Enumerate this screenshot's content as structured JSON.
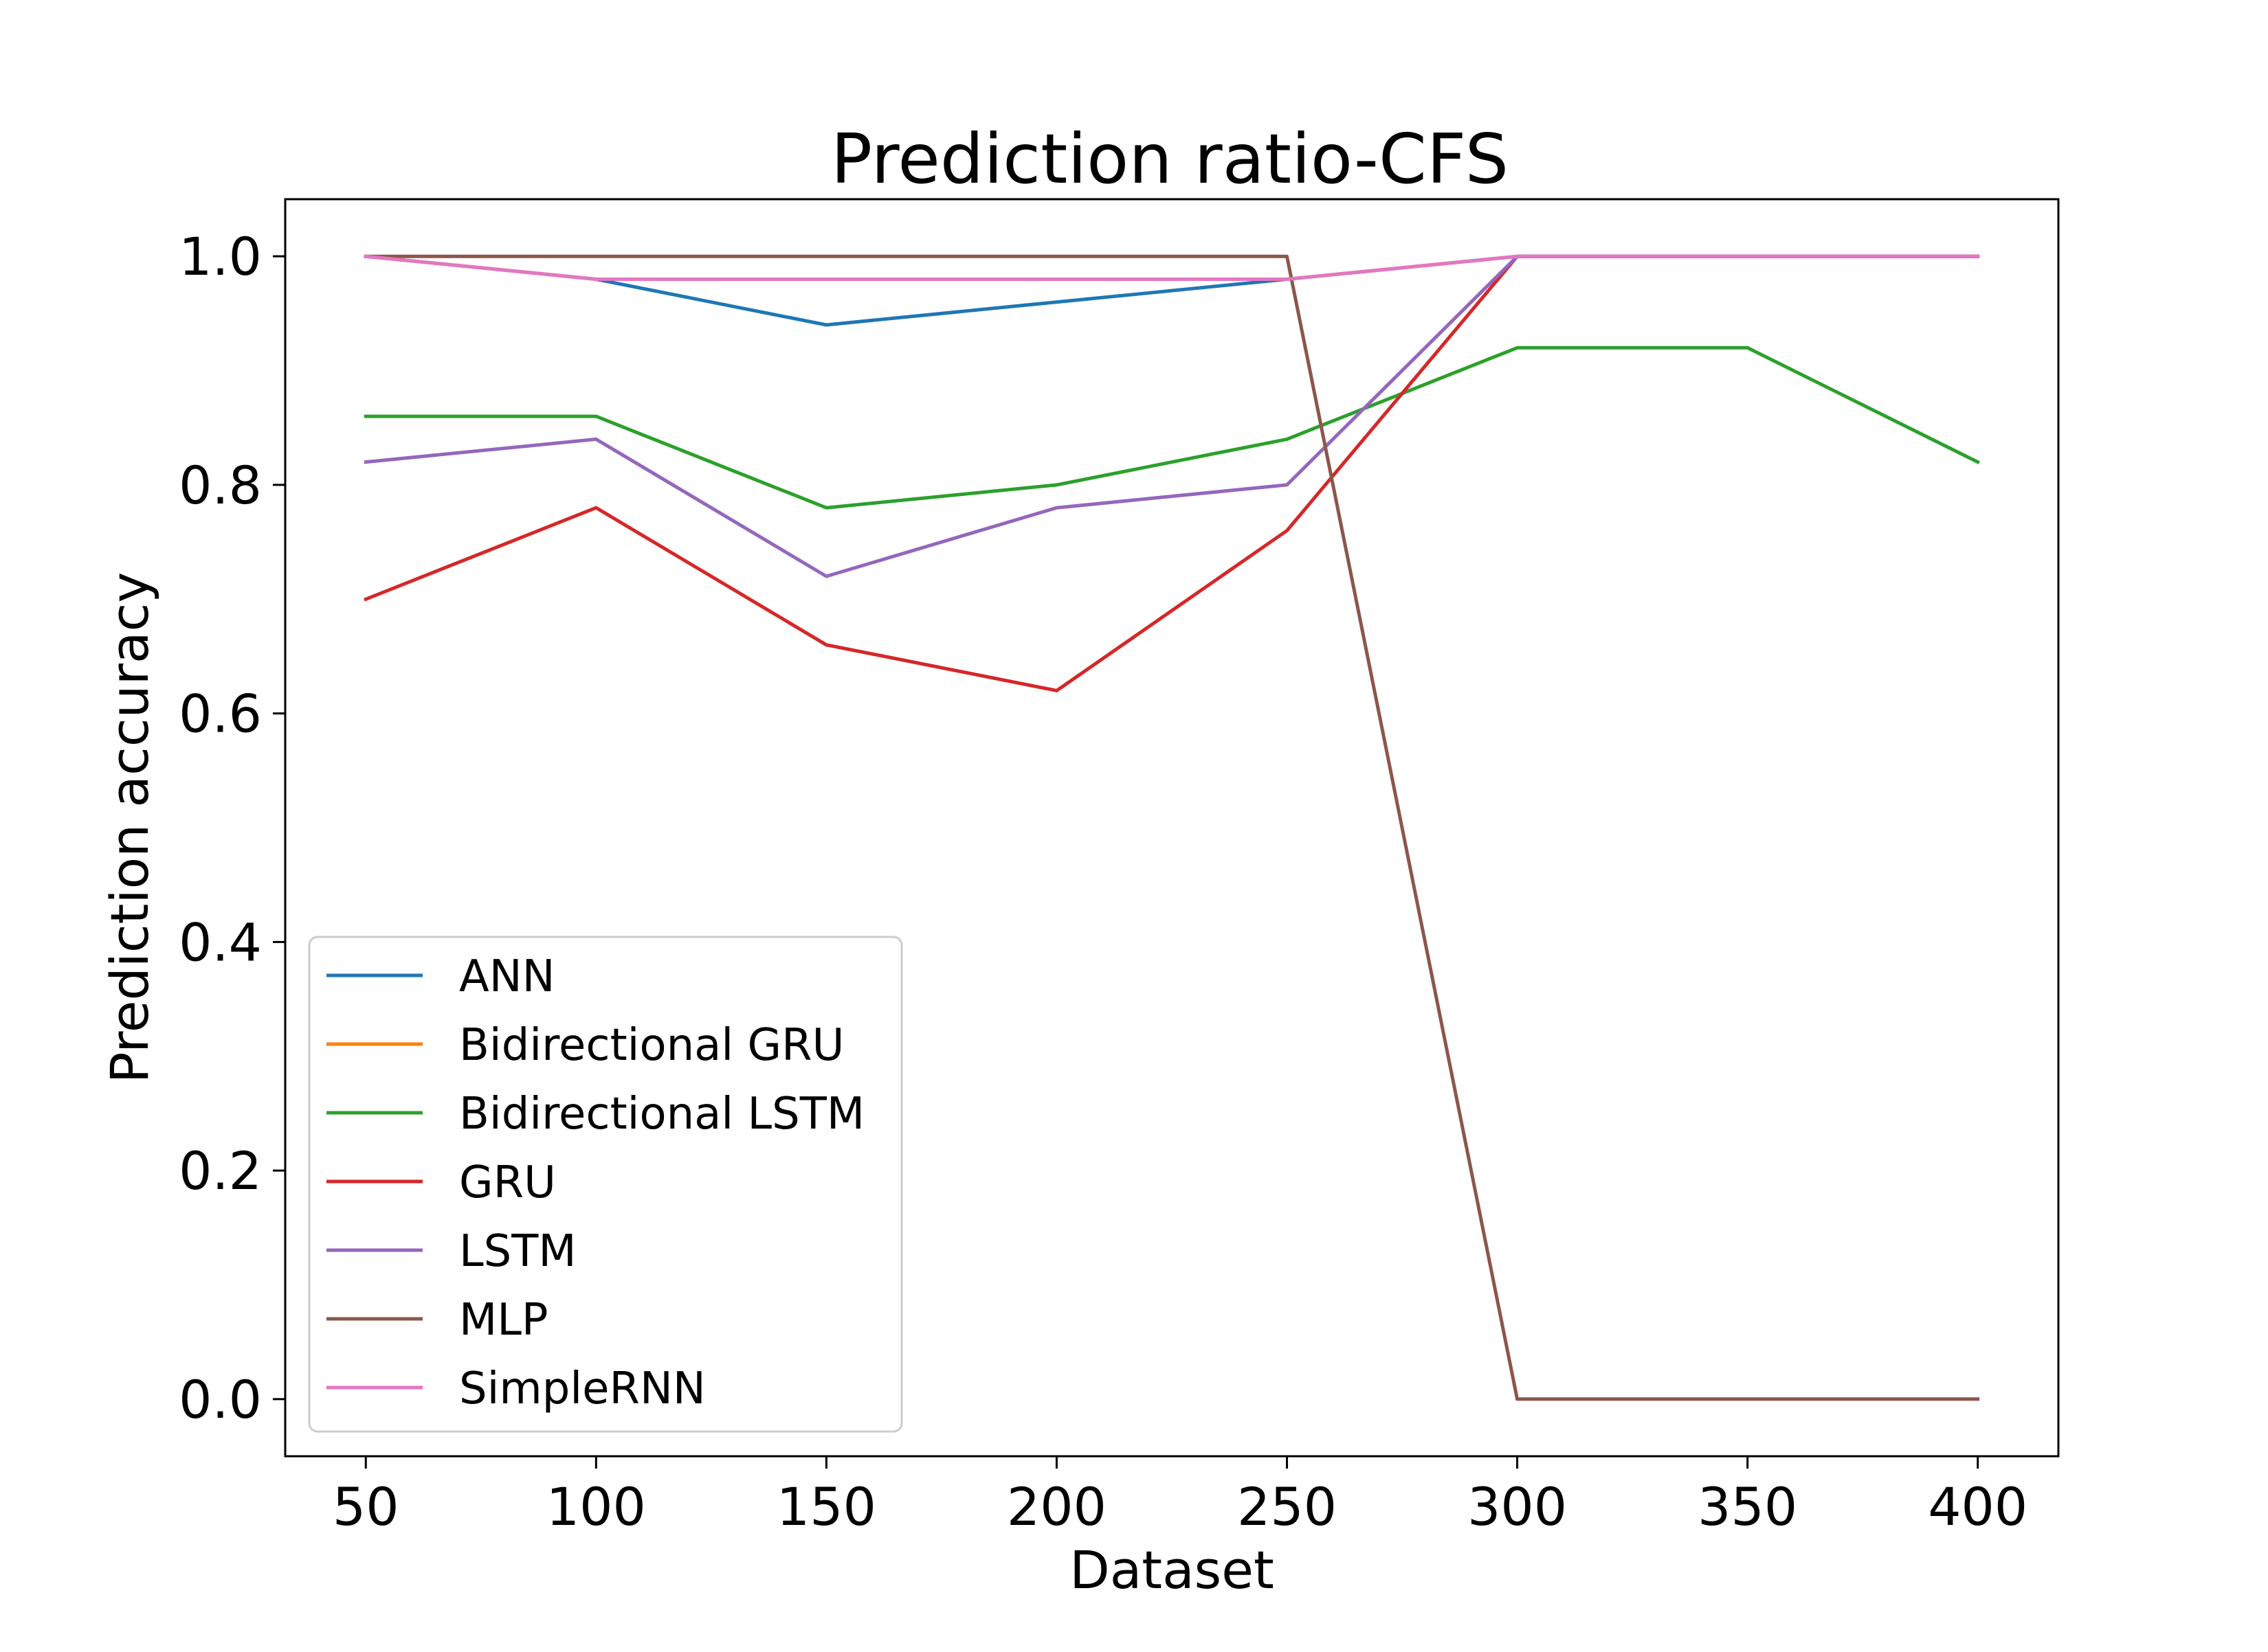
{
  "chart_data": {
    "type": "line",
    "title": "Prediction ratio-CFS",
    "xlabel": "Dataset",
    "ylabel": "Prediction accuracy",
    "x": [
      50,
      100,
      150,
      200,
      250,
      300,
      350,
      400
    ],
    "xlim": [
      32.5,
      417.5
    ],
    "ylim": [
      -0.05,
      1.05
    ],
    "xticks": [
      50,
      100,
      150,
      200,
      250,
      300,
      350,
      400
    ],
    "xtick_labels": [
      "50",
      "100",
      "150",
      "200",
      "250",
      "300",
      "350",
      "400"
    ],
    "yticks": [
      0.0,
      0.2,
      0.4,
      0.6,
      0.8,
      1.0
    ],
    "ytick_labels": [
      "0.0",
      "0.2",
      "0.4",
      "0.6",
      "0.8",
      "1.0"
    ],
    "grid": false,
    "legend_position": "lower-left",
    "series": [
      {
        "name": "ANN",
        "color": "#1f77b4",
        "values": [
          1.0,
          0.98,
          0.94,
          0.96,
          0.98,
          1.0,
          1.0,
          1.0
        ]
      },
      {
        "name": "Bidirectional GRU",
        "color": "#ff7f0e",
        "values": [
          1.0,
          0.98,
          0.98,
          0.98,
          0.98,
          1.0,
          1.0,
          1.0
        ]
      },
      {
        "name": "Bidirectional LSTM",
        "color": "#2ca02c",
        "values": [
          0.86,
          0.86,
          0.78,
          0.8,
          0.84,
          0.92,
          0.92,
          0.82
        ]
      },
      {
        "name": "GRU",
        "color": "#d62728",
        "values": [
          0.7,
          0.78,
          0.66,
          0.62,
          0.76,
          1.0,
          1.0,
          1.0
        ]
      },
      {
        "name": "LSTM",
        "color": "#9467bd",
        "values": [
          0.82,
          0.84,
          0.72,
          0.78,
          0.8,
          1.0,
          1.0,
          1.0
        ]
      },
      {
        "name": "MLP",
        "color": "#8c564b",
        "values": [
          1.0,
          1.0,
          1.0,
          1.0,
          1.0,
          0.0,
          0.0,
          0.0
        ]
      },
      {
        "name": "SimpleRNN",
        "color": "#e377c2",
        "values": [
          1.0,
          0.98,
          0.98,
          0.98,
          0.98,
          1.0,
          1.0,
          1.0
        ]
      }
    ]
  }
}
